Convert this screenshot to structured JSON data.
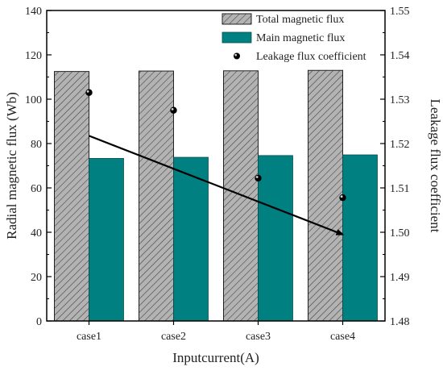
{
  "chart_data": {
    "type": "bar",
    "categories": [
      "case1",
      "case2",
      "case3",
      "case4"
    ],
    "xlabel": "Inputcurrent(A)",
    "ylabel": "Radial magnetic flux (Wb)",
    "y2label": "Leakage flux coefficient",
    "ylim": [
      0,
      140
    ],
    "yticks": [
      0,
      20,
      40,
      60,
      80,
      100,
      120,
      140
    ],
    "y2lim": [
      1.48,
      1.55
    ],
    "y2ticks": [
      "1.48",
      "1.49",
      "1.50",
      "1.51",
      "1.52",
      "1.53",
      "1.54",
      "1.55"
    ],
    "series": [
      {
        "name": "Total magnetic flux",
        "kind": "bar-hatched",
        "axis": "left",
        "color": "#aaaaaa",
        "values": [
          112.5,
          112.7,
          112.8,
          113.0
        ]
      },
      {
        "name": "Main magnetic flux",
        "kind": "bar",
        "axis": "left",
        "color": "#008080",
        "values": [
          73.3,
          73.8,
          74.6,
          74.9
        ]
      },
      {
        "name": "Leakage flux coefficient",
        "kind": "scatter",
        "axis": "right",
        "color": "#000000",
        "values": [
          1.5315,
          1.5275,
          1.5122,
          1.5078
        ]
      }
    ],
    "arrow": {
      "from": {
        "x": "case1",
        "y": 83.5
      },
      "to": {
        "x": "case4",
        "y": 39
      }
    },
    "legend_position": "top-right",
    "grid": false
  }
}
